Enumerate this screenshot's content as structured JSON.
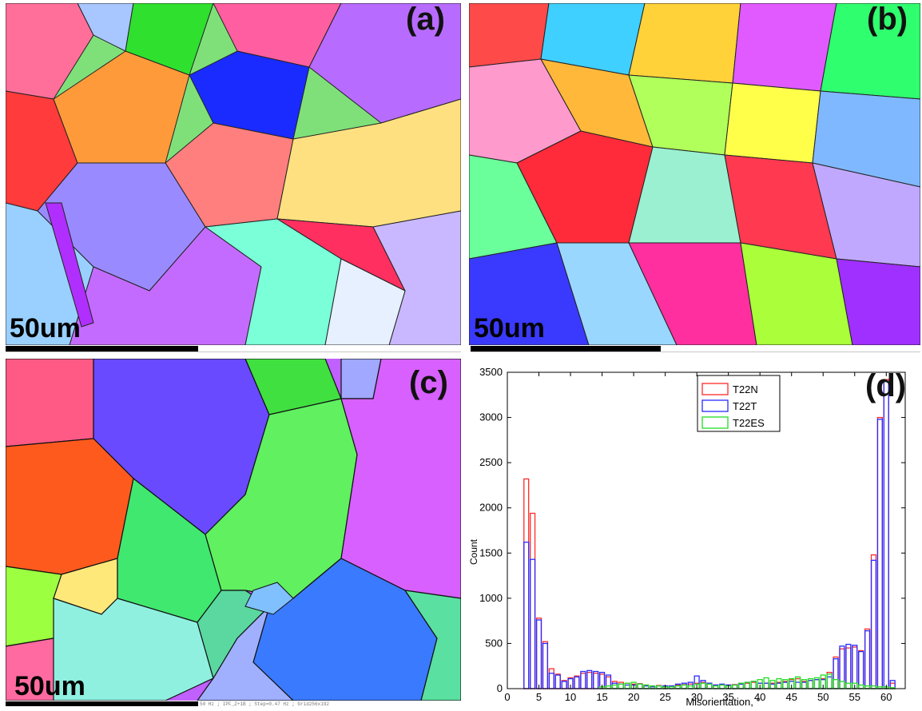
{
  "panels": {
    "a": {
      "label": "(a)",
      "scale_text": "50um"
    },
    "b": {
      "label": "(b)",
      "scale_text": "50um"
    },
    "c": {
      "label": "(c)",
      "scale_text": "50um",
      "meta_text": "50 Hz ; IPF_Z+1B ; Step=0.47 Hz ; Grid256x192"
    },
    "d": {
      "label": "(d)"
    }
  },
  "chart_data": {
    "type": "bar",
    "xlabel": "Misorientation, °",
    "ylabel": "Count",
    "xlim": [
      0,
      63
    ],
    "ylim": [
      0,
      3500
    ],
    "xticks": [
      0,
      5,
      10,
      15,
      20,
      25,
      30,
      35,
      40,
      45,
      50,
      55,
      60
    ],
    "yticks": [
      0,
      500,
      1000,
      1500,
      2000,
      2500,
      3000,
      3500
    ],
    "legend_position": "top-center",
    "x": [
      3,
      4,
      5,
      6,
      7,
      8,
      9,
      10,
      11,
      12,
      13,
      14,
      15,
      16,
      17,
      18,
      19,
      20,
      21,
      22,
      23,
      24,
      25,
      26,
      27,
      28,
      29,
      30,
      31,
      32,
      33,
      34,
      35,
      36,
      37,
      38,
      39,
      40,
      41,
      42,
      43,
      44,
      45,
      46,
      47,
      48,
      49,
      50,
      51,
      52,
      53,
      54,
      55,
      56,
      57,
      58,
      59,
      60,
      61
    ],
    "series": [
      {
        "name": "T22N",
        "color": "#ff2a2a",
        "values": [
          2320,
          1940,
          780,
          520,
          220,
          160,
          90,
          120,
          140,
          170,
          180,
          170,
          160,
          130,
          80,
          70,
          60,
          50,
          55,
          40,
          30,
          35,
          30,
          30,
          40,
          45,
          50,
          60,
          70,
          60,
          40,
          40,
          40,
          45,
          60,
          60,
          70,
          60,
          60,
          60,
          70,
          80,
          100,
          110,
          80,
          90,
          100,
          110,
          180,
          350,
          440,
          450,
          460,
          420,
          660,
          1480,
          3000,
          3420,
          60
        ]
      },
      {
        "name": "T22T",
        "color": "#2a2aff",
        "values": [
          1620,
          1430,
          760,
          500,
          170,
          150,
          80,
          110,
          130,
          190,
          200,
          190,
          180,
          150,
          60,
          50,
          40,
          40,
          50,
          30,
          20,
          30,
          30,
          30,
          50,
          60,
          70,
          140,
          90,
          60,
          40,
          50,
          40,
          40,
          50,
          70,
          80,
          60,
          60,
          50,
          60,
          70,
          80,
          70,
          70,
          90,
          100,
          100,
          130,
          330,
          470,
          490,
          480,
          410,
          640,
          1420,
          2980,
          3400,
          90
        ]
      },
      {
        "name": "T22ES",
        "color": "#22dd22",
        "values": [
          0,
          0,
          0,
          0,
          0,
          0,
          0,
          0,
          0,
          0,
          0,
          0,
          20,
          30,
          40,
          50,
          60,
          70,
          50,
          40,
          30,
          30,
          20,
          20,
          30,
          40,
          30,
          50,
          60,
          50,
          30,
          40,
          30,
          40,
          60,
          70,
          80,
          100,
          120,
          90,
          110,
          100,
          110,
          130,
          100,
          110,
          120,
          150,
          160,
          100,
          80,
          60,
          60,
          40,
          30,
          30,
          20,
          20,
          10
        ]
      }
    ]
  }
}
